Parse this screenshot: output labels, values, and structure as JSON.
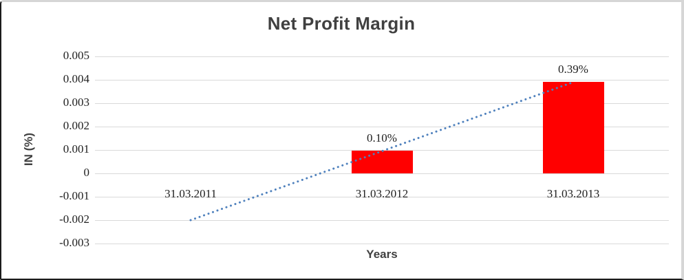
{
  "chart_data": {
    "type": "bar",
    "title": "Net Profit Margin",
    "xlabel": "Years",
    "ylabel": "IN (%)",
    "categories": [
      "31.03.2011",
      "31.03.2012",
      "31.03.2013"
    ],
    "values": [
      0,
      0.00097,
      0.0039
    ],
    "data_labels": [
      "",
      "0.10%",
      "0.39%"
    ],
    "yticks": [
      0.005,
      0.004,
      0.003,
      0.002,
      0.001,
      0,
      -0.001,
      -0.002,
      -0.003
    ],
    "ytick_labels": [
      "0.005",
      "0.004",
      "0.003",
      "0.002",
      "0.001",
      "0",
      "-0.001",
      "-0.002",
      "-0.003"
    ],
    "ylim": [
      -0.003,
      0.005
    ],
    "grid": true,
    "legend": false,
    "bar_color": "#FF0000",
    "gridline_color": "#D9D9D9",
    "text_color": "#404040",
    "trendline": {
      "type": "linear",
      "style": "dotted",
      "color": "#4F81BD",
      "start_value": -0.002,
      "end_value": 0.0039
    }
  }
}
